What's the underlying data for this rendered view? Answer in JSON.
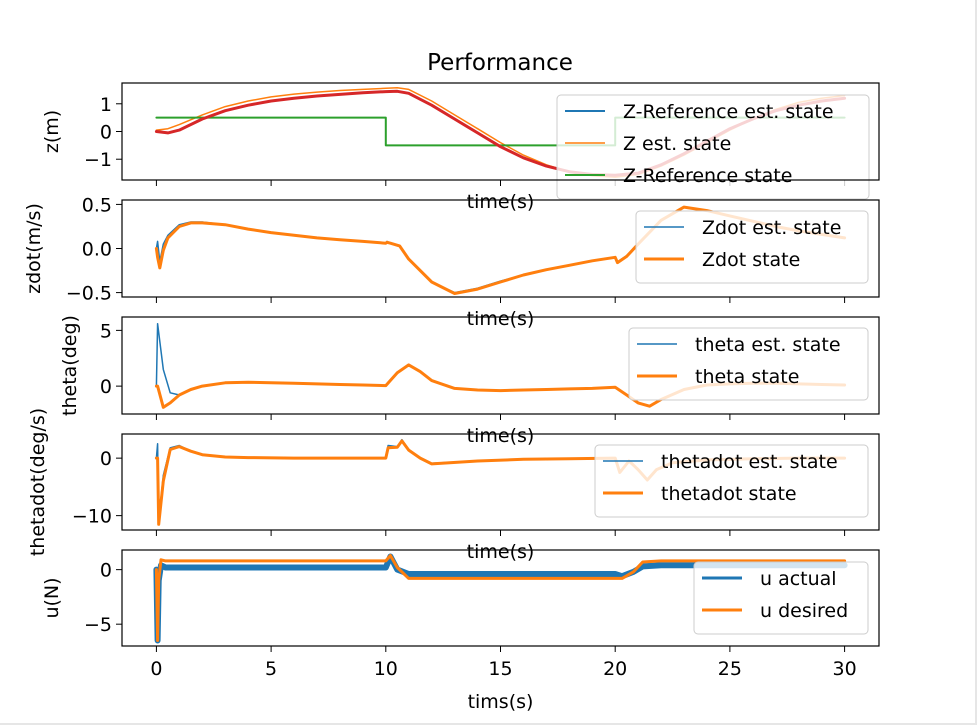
{
  "figure": {
    "title": "Performance"
  },
  "colors": {
    "blue": "#1f77b4",
    "orange": "#ff7f0e",
    "green": "#2ca02c",
    "red": "#d62728",
    "legend_border": "#cccccc"
  },
  "chart_data": [
    {
      "type": "line",
      "panel": "z",
      "ylabel": "z(m)",
      "xlabel": "time(s)",
      "xlim": [
        -1.5,
        31.5
      ],
      "ylim": [
        -1.75,
        1.75
      ],
      "yticks": [
        1,
        0,
        -1
      ],
      "ytick_labels": [
        "1",
        "0",
        "−1"
      ],
      "legend_position": "upper-right",
      "series": [
        {
          "name": "Z-Reference est. state",
          "color": "#1f77b4",
          "width": 2,
          "x": [
            0,
            0.5,
            1,
            2,
            3,
            4,
            5,
            6,
            7,
            8,
            9,
            10,
            10.5,
            11,
            12,
            13,
            14,
            15,
            16,
            17,
            18,
            19,
            20,
            21,
            22,
            23,
            24,
            25,
            26,
            27,
            28,
            29,
            30
          ],
          "y": [
            0.0,
            -0.05,
            0.05,
            0.45,
            0.75,
            0.95,
            1.1,
            1.2,
            1.28,
            1.34,
            1.4,
            1.44,
            1.45,
            1.38,
            0.95,
            0.45,
            -0.05,
            -0.55,
            -0.95,
            -1.25,
            -1.45,
            -1.55,
            -1.58,
            -1.5,
            -1.2,
            -0.8,
            -0.35,
            0.1,
            0.45,
            0.75,
            0.95,
            1.1,
            1.2
          ]
        },
        {
          "name": "Z est. state",
          "color": "#ff7f0e",
          "width": 1.5,
          "x": [
            0,
            0.5,
            1,
            2,
            3,
            4,
            5,
            6,
            7,
            8,
            9,
            10,
            10.5,
            11,
            12,
            13,
            14,
            15,
            16,
            17,
            18,
            19,
            20,
            21,
            22,
            23,
            24,
            25,
            26,
            27,
            28,
            29,
            30
          ],
          "y": [
            0.05,
            0.1,
            0.25,
            0.6,
            0.9,
            1.1,
            1.25,
            1.35,
            1.42,
            1.48,
            1.52,
            1.56,
            1.58,
            1.52,
            1.1,
            0.6,
            0.1,
            -0.4,
            -0.85,
            -1.2,
            -1.45,
            -1.6,
            -1.65,
            -1.55,
            -1.25,
            -0.85,
            -0.4,
            0.05,
            0.45,
            0.8,
            1.05,
            1.2,
            1.3
          ]
        },
        {
          "name": "Z-Reference state",
          "color": "#2ca02c",
          "width": 2,
          "x": [
            0,
            10,
            10,
            20,
            20,
            30
          ],
          "y": [
            0.5,
            0.5,
            -0.5,
            -0.5,
            0.5,
            0.5
          ]
        },
        {
          "name": "",
          "color": "#d62728",
          "width": 3,
          "x": [
            0,
            0.5,
            1,
            2,
            3,
            4,
            5,
            6,
            7,
            8,
            9,
            10,
            10.5,
            11,
            12,
            13,
            14,
            15,
            16,
            17,
            18,
            19,
            20,
            21,
            22,
            23,
            24,
            25,
            26,
            27,
            28,
            29,
            30
          ],
          "y": [
            0.0,
            -0.05,
            0.05,
            0.45,
            0.75,
            0.95,
            1.1,
            1.2,
            1.28,
            1.34,
            1.4,
            1.44,
            1.45,
            1.38,
            0.95,
            0.45,
            -0.05,
            -0.55,
            -0.95,
            -1.25,
            -1.45,
            -1.55,
            -1.58,
            -1.5,
            -1.2,
            -0.8,
            -0.35,
            0.1,
            0.45,
            0.75,
            0.95,
            1.1,
            1.2
          ]
        }
      ]
    },
    {
      "type": "line",
      "panel": "zdot",
      "ylabel": "zdot(m/s)",
      "xlabel": "time(s)",
      "xlim": [
        -1.5,
        31.5
      ],
      "ylim": [
        -0.55,
        0.55
      ],
      "yticks": [
        0.5,
        0.0,
        -0.5
      ],
      "ytick_labels": [
        "0.5",
        "0.0",
        "−0.5"
      ],
      "legend_position": "upper-right",
      "series": [
        {
          "name": "Zdot est. state",
          "color": "#1f77b4",
          "width": 1.5,
          "x": [
            0,
            0.05,
            0.15,
            0.3,
            0.5,
            1,
            1.5,
            2,
            3,
            4,
            5,
            6,
            7,
            8,
            9,
            10,
            10.05,
            10.2,
            10.6,
            11,
            12,
            13,
            14,
            15,
            16,
            17,
            18,
            19,
            20,
            20.1,
            20.5,
            21,
            22,
            23,
            24,
            25,
            26,
            27,
            28,
            29,
            30
          ],
          "y": [
            0.0,
            0.08,
            -0.15,
            0.05,
            0.15,
            0.27,
            0.3,
            0.3,
            0.27,
            0.22,
            0.18,
            0.15,
            0.12,
            0.1,
            0.08,
            0.06,
            0.08,
            0.06,
            0.03,
            -0.12,
            -0.38,
            -0.5,
            -0.45,
            -0.37,
            -0.3,
            -0.24,
            -0.19,
            -0.14,
            -0.1,
            -0.15,
            -0.08,
            0.05,
            0.32,
            0.47,
            0.43,
            0.37,
            0.31,
            0.25,
            0.2,
            0.16,
            0.12
          ]
        },
        {
          "name": "Zdot state",
          "color": "#ff7f0e",
          "width": 3,
          "x": [
            0,
            0.05,
            0.15,
            0.3,
            0.5,
            1,
            1.5,
            2,
            3,
            4,
            5,
            6,
            7,
            8,
            9,
            10,
            10.05,
            10.2,
            10.6,
            11,
            12,
            13,
            14,
            15,
            16,
            17,
            18,
            19,
            20,
            20.1,
            20.5,
            21,
            22,
            23,
            24,
            25,
            26,
            27,
            28,
            29,
            30
          ],
          "y": [
            0.0,
            -0.1,
            -0.22,
            -0.02,
            0.12,
            0.25,
            0.29,
            0.29,
            0.27,
            0.22,
            0.18,
            0.15,
            0.12,
            0.1,
            0.08,
            0.06,
            0.07,
            0.06,
            0.03,
            -0.12,
            -0.38,
            -0.51,
            -0.46,
            -0.38,
            -0.3,
            -0.24,
            -0.19,
            -0.14,
            -0.1,
            -0.16,
            -0.09,
            0.05,
            0.32,
            0.47,
            0.43,
            0.37,
            0.31,
            0.25,
            0.2,
            0.16,
            0.12
          ]
        }
      ]
    },
    {
      "type": "line",
      "panel": "theta",
      "ylabel": "theta(deg)",
      "xlabel": "time(s)",
      "xlim": [
        -1.5,
        31.5
      ],
      "ylim": [
        -2.5,
        6.2
      ],
      "yticks": [
        5,
        0
      ],
      "ytick_labels": [
        "5",
        "0"
      ],
      "legend_position": "upper-right",
      "series": [
        {
          "name": "theta est. state",
          "color": "#1f77b4",
          "width": 1.5,
          "x": [
            0,
            0.05,
            0.3,
            0.6,
            1,
            1.5,
            2,
            3,
            4,
            5,
            6,
            7,
            8,
            9,
            10,
            10.5,
            11,
            11.5,
            12,
            13,
            14,
            15,
            16,
            17,
            18,
            19,
            20,
            20.5,
            21,
            21.5,
            22,
            23,
            24,
            25,
            26,
            27,
            28,
            29,
            30
          ],
          "y": [
            0.0,
            5.6,
            1.5,
            -0.6,
            -0.8,
            -0.3,
            0.0,
            0.3,
            0.35,
            0.3,
            0.25,
            0.2,
            0.15,
            0.1,
            0.05,
            1.2,
            1.9,
            1.3,
            0.5,
            -0.2,
            -0.35,
            -0.4,
            -0.35,
            -0.3,
            -0.25,
            -0.2,
            -0.1,
            -0.8,
            -1.5,
            -1.8,
            -1.2,
            -0.3,
            0.1,
            0.2,
            0.25,
            0.25,
            0.2,
            0.15,
            0.1
          ]
        },
        {
          "name": "theta state",
          "color": "#ff7f0e",
          "width": 3,
          "x": [
            0,
            0.05,
            0.3,
            0.6,
            1,
            1.5,
            2,
            3,
            4,
            5,
            6,
            7,
            8,
            9,
            10,
            10.5,
            11,
            11.5,
            12,
            13,
            14,
            15,
            16,
            17,
            18,
            19,
            20,
            20.5,
            21,
            21.5,
            22,
            23,
            24,
            25,
            26,
            27,
            28,
            29,
            30
          ],
          "y": [
            0.0,
            0.0,
            -1.9,
            -1.5,
            -0.8,
            -0.3,
            0.0,
            0.3,
            0.35,
            0.3,
            0.25,
            0.2,
            0.15,
            0.1,
            0.05,
            1.2,
            1.9,
            1.3,
            0.5,
            -0.2,
            -0.35,
            -0.4,
            -0.35,
            -0.3,
            -0.25,
            -0.2,
            -0.1,
            -0.8,
            -1.5,
            -1.8,
            -1.2,
            -0.3,
            0.1,
            0.2,
            0.25,
            0.25,
            0.2,
            0.15,
            0.1
          ]
        }
      ]
    },
    {
      "type": "line",
      "panel": "thetadot",
      "ylabel": "thetadot(deg/s)",
      "xlabel": "time(s)",
      "xlim": [
        -1.5,
        31.5
      ],
      "ylim": [
        -12.5,
        4.2
      ],
      "yticks": [
        0,
        -10
      ],
      "ytick_labels": [
        "0",
        "−10"
      ],
      "legend_position": "upper-right",
      "series": [
        {
          "name": "thetadot est. state",
          "color": "#1f77b4",
          "width": 1.5,
          "x": [
            0,
            0.05,
            0.1,
            0.3,
            0.6,
            1,
            1.5,
            2,
            3,
            4,
            6,
            8,
            10,
            10.1,
            10.5,
            10.7,
            11,
            11.5,
            12,
            14,
            16,
            18,
            20,
            20.2,
            20.6,
            21,
            21.4,
            21.8,
            22.5,
            24,
            26,
            28,
            30
          ],
          "y": [
            0.0,
            2.5,
            -11,
            -3,
            1.8,
            2.2,
            1.2,
            0.6,
            0.2,
            0.1,
            0.0,
            0.0,
            0.0,
            2.2,
            2.0,
            3.2,
            1.5,
            0.0,
            -0.9,
            -0.5,
            -0.2,
            -0.1,
            0.0,
            -2.5,
            -0.5,
            -2.0,
            -3.8,
            -2.0,
            -0.8,
            -0.3,
            -0.1,
            0.0,
            0.0
          ]
        },
        {
          "name": "thetadot state",
          "color": "#ff7f0e",
          "width": 3,
          "x": [
            0,
            0.05,
            0.1,
            0.3,
            0.6,
            1,
            1.5,
            2,
            3,
            4,
            6,
            8,
            10,
            10.1,
            10.5,
            10.7,
            11,
            11.5,
            12,
            14,
            16,
            18,
            20,
            20.2,
            20.6,
            21,
            21.4,
            21.8,
            22.5,
            24,
            26,
            28,
            30
          ],
          "y": [
            0.0,
            0.0,
            -11.5,
            -4,
            1.5,
            2.0,
            1.2,
            0.6,
            0.2,
            0.1,
            0.0,
            0.0,
            0.0,
            1.8,
            1.9,
            3.0,
            1.4,
            0.0,
            -1.0,
            -0.5,
            -0.2,
            -0.1,
            0.0,
            -2.5,
            -0.5,
            -2.0,
            -3.8,
            -2.0,
            -0.8,
            -0.3,
            -0.1,
            0.0,
            0.0
          ]
        }
      ]
    },
    {
      "type": "line",
      "panel": "u",
      "ylabel": "u(N)",
      "xlabel": "tims(s)",
      "xlim": [
        -1.5,
        31.5
      ],
      "ylim": [
        -7.0,
        1.8
      ],
      "yticks": [
        0,
        -5
      ],
      "ytick_labels": [
        "0",
        "−5"
      ],
      "xticks": [
        0,
        5,
        10,
        15,
        20,
        25,
        30
      ],
      "xtick_labels": [
        "0",
        "5",
        "10",
        "15",
        "20",
        "25",
        "30"
      ],
      "legend_position": "lower-right",
      "series": [
        {
          "name": "u actual",
          "color": "#1f77b4",
          "width": 6,
          "x": [
            0,
            0.05,
            0.1,
            0.2,
            0.4,
            1,
            5,
            10,
            10.2,
            10.5,
            11,
            12,
            15,
            20,
            20.3,
            20.8,
            21.2,
            22,
            25,
            30
          ],
          "y": [
            0.0,
            -6.5,
            -1.0,
            0.4,
            0.2,
            0.2,
            0.2,
            0.2,
            1.2,
            0.0,
            -0.4,
            -0.4,
            -0.4,
            -0.4,
            -0.6,
            -0.2,
            0.3,
            0.4,
            0.4,
            0.4
          ]
        },
        {
          "name": "u desired",
          "color": "#ff7f0e",
          "width": 3,
          "x": [
            0,
            0.05,
            0.1,
            0.2,
            0.4,
            1,
            5,
            10,
            10.2,
            10.5,
            11,
            12,
            15,
            20,
            20.3,
            20.8,
            21.2,
            22,
            25,
            30
          ],
          "y": [
            0.0,
            -6.5,
            -1.0,
            0.9,
            0.8,
            0.8,
            0.8,
            0.8,
            1.3,
            0.2,
            -0.8,
            -0.8,
            -0.8,
            -0.8,
            -0.8,
            -0.2,
            0.7,
            0.8,
            0.8,
            0.8
          ]
        }
      ]
    }
  ]
}
